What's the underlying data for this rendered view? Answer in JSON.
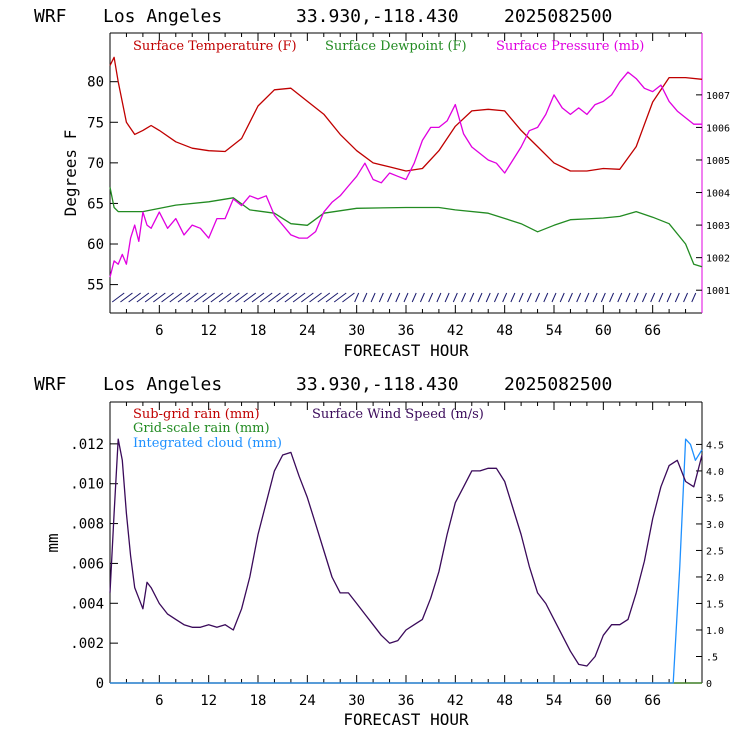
{
  "colors": {
    "temp": "#c00000",
    "dew": "#228b22",
    "pressure": "#e000e0",
    "wind": "#3a0a5a",
    "cloud": "#1e90ff",
    "barbs": "#1a1a6e",
    "frame_right_top": "#e000e0"
  },
  "top": {
    "title": {
      "model": "WRF",
      "location": "Los Angeles",
      "coords": "33.930,-118.430",
      "date": "2025082500"
    },
    "ylabel": "Degrees F",
    "xlabel": "FORECAST HOUR"
  },
  "bottom": {
    "title": {
      "model": "WRF",
      "location": "Los Angeles",
      "coords": "33.930,-118.430",
      "date": "2025082500"
    },
    "ylabel": "mm",
    "xlabel": "FORECAST HOUR"
  },
  "chart_data": [
    {
      "type": "line",
      "x_ticks": [
        "6",
        "12",
        "18",
        "24",
        "30",
        "36",
        "42",
        "48",
        "54",
        "60",
        "66"
      ],
      "xlim": [
        0,
        72
      ],
      "left_axis": {
        "label": "Degrees F",
        "ticks": [
          "55",
          "60",
          "65",
          "70",
          "75",
          "80"
        ],
        "ylim": [
          51.5,
          86
        ]
      },
      "right_axis": {
        "ticks": [
          "1001",
          "1002",
          "1003",
          "1004",
          "1005",
          "1006",
          "1007"
        ],
        "ylim": [
          1000.3,
          1008.9
        ]
      },
      "series": [
        {
          "name": "Surface Temperature (F)",
          "axis": "left",
          "color_key": "temp",
          "x": [
            0,
            0.5,
            1,
            2,
            3,
            4,
            5,
            6,
            8,
            10,
            12,
            14,
            16,
            18,
            20,
            22,
            24,
            26,
            28,
            30,
            32,
            34,
            36,
            38,
            40,
            42,
            44,
            46,
            48,
            50,
            52,
            54,
            56,
            58,
            60,
            62,
            64,
            66,
            68,
            70,
            72
          ],
          "y": [
            82,
            83,
            80,
            75,
            73.5,
            74,
            74.6,
            74,
            72.6,
            71.8,
            71.5,
            71.4,
            73,
            77,
            79,
            79.2,
            77.6,
            76,
            73.5,
            71.5,
            70,
            69.5,
            69,
            69.3,
            71.5,
            74.5,
            76.4,
            76.6,
            76.4,
            74,
            72,
            70,
            69,
            69,
            69.3,
            69.2,
            72,
            77.5,
            80.5,
            80.5,
            80.3
          ]
        },
        {
          "name": "Surface Dewpoint (F)",
          "axis": "left",
          "color_key": "dew",
          "x": [
            0,
            0.5,
            1,
            4,
            8,
            12,
            15,
            17,
            20,
            22,
            24,
            26,
            30,
            36,
            40,
            42,
            46,
            50,
            52,
            54,
            56,
            58,
            60,
            62,
            64,
            66,
            68,
            70,
            71,
            72
          ],
          "y": [
            67,
            64.5,
            64,
            64,
            64.8,
            65.2,
            65.7,
            64.2,
            63.8,
            62.5,
            62.3,
            63.8,
            64.4,
            64.5,
            64.5,
            64.2,
            63.8,
            62.5,
            61.5,
            62.3,
            63,
            63.1,
            63.2,
            63.4,
            64,
            63.3,
            62.5,
            60,
            57.5,
            57.2
          ]
        },
        {
          "name": "Surface Pressure (mb)",
          "axis": "right",
          "color_key": "pressure",
          "x": [
            0,
            0.5,
            1,
            1.5,
            2,
            2.5,
            3,
            3.5,
            4,
            4.5,
            5,
            6,
            7,
            8,
            9,
            10,
            11,
            12,
            13,
            14,
            15,
            16,
            17,
            18,
            19,
            20,
            21,
            22,
            23,
            24,
            25,
            26,
            27,
            28,
            29,
            30,
            31,
            32,
            33,
            34,
            35,
            36,
            37,
            38,
            39,
            40,
            41,
            42,
            43,
            44,
            45,
            46,
            47,
            48,
            49,
            50,
            51,
            52,
            53,
            54,
            55,
            56,
            57,
            58,
            59,
            60,
            61,
            62,
            63,
            64,
            65,
            66,
            67,
            68,
            69,
            70,
            71,
            72
          ],
          "y": [
            1001.4,
            1001.9,
            1001.8,
            1002.1,
            1001.8,
            1002.6,
            1003.0,
            1002.5,
            1003.4,
            1003.0,
            1002.9,
            1003.4,
            1002.9,
            1003.2,
            1002.7,
            1003.0,
            1002.9,
            1002.6,
            1003.2,
            1003.2,
            1003.8,
            1003.6,
            1003.9,
            1003.8,
            1003.9,
            1003.3,
            1003.0,
            1002.7,
            1002.6,
            1002.6,
            1002.8,
            1003.4,
            1003.7,
            1003.9,
            1004.2,
            1004.5,
            1004.9,
            1004.4,
            1004.3,
            1004.6,
            1004.5,
            1004.4,
            1004.9,
            1005.6,
            1006.0,
            1006.0,
            1006.2,
            1006.7,
            1005.8,
            1005.4,
            1005.2,
            1005.0,
            1004.9,
            1004.6,
            1005.0,
            1005.4,
            1005.9,
            1006.0,
            1006.4,
            1007.0,
            1006.6,
            1006.4,
            1006.6,
            1006.4,
            1006.7,
            1006.8,
            1007.0,
            1007.4,
            1007.7,
            1007.5,
            1007.2,
            1007.1,
            1007.3,
            1006.8,
            1006.5,
            1006.3,
            1006.1,
            1006.1
          ]
        }
      ]
    },
    {
      "type": "line",
      "x_ticks": [
        "6",
        "12",
        "18",
        "24",
        "30",
        "36",
        "42",
        "48",
        "54",
        "60",
        "66"
      ],
      "xlim": [
        0,
        72
      ],
      "left_axis": {
        "label": "mm",
        "ticks": [
          "0",
          ".002",
          ".004",
          ".006",
          ".008",
          ".010",
          ".012"
        ],
        "tick_values": [
          0,
          0.002,
          0.004,
          0.006,
          0.008,
          0.01,
          0.012
        ],
        "ylim": [
          0,
          0.0141
        ]
      },
      "right_axis": {
        "ticks": [
          "0",
          ".5",
          "1.0",
          "1.5",
          "2.0",
          "2.5",
          "3.0",
          "3.5",
          "4.0",
          "4.5"
        ],
        "tick_values": [
          0,
          0.5,
          1.0,
          1.5,
          2.0,
          2.5,
          3.0,
          3.5,
          4.0,
          4.5
        ],
        "ylim": [
          0,
          5.3
        ]
      },
      "series": [
        {
          "name": "Sub-grid rain (mm)",
          "axis": "left",
          "color_key": "temp",
          "x": [
            0,
            72
          ],
          "y": [
            0,
            0
          ]
        },
        {
          "name": "Grid-scale rain (mm)",
          "axis": "left",
          "color_key": "dew",
          "x": [
            0,
            72
          ],
          "y": [
            0,
            0
          ]
        },
        {
          "name": "Integrated cloud (mm)",
          "axis": "right",
          "color_key": "cloud",
          "x": [
            0,
            68.5,
            69.3,
            70,
            70.6,
            71.2,
            72
          ],
          "y": [
            0,
            0,
            2.2,
            4.6,
            4.5,
            4.2,
            4.4
          ]
        },
        {
          "name": "Surface Wind Speed (m/s)",
          "axis": "right",
          "color_key": "wind",
          "x": [
            0,
            0.5,
            1,
            1.5,
            2,
            2.5,
            3,
            3.5,
            4,
            4.5,
            5,
            6,
            7,
            8,
            9,
            10,
            11,
            12,
            13,
            14,
            15,
            16,
            17,
            18,
            19,
            20,
            21,
            22,
            23,
            24,
            25,
            26,
            27,
            28,
            29,
            30,
            31,
            32,
            33,
            34,
            35,
            36,
            37,
            38,
            39,
            40,
            41,
            42,
            43,
            44,
            45,
            46,
            47,
            48,
            49,
            50,
            51,
            52,
            53,
            54,
            55,
            56,
            57,
            58,
            59,
            60,
            61,
            62,
            63,
            64,
            65,
            66,
            67,
            68,
            69,
            70,
            71,
            72
          ],
          "y": [
            1.7,
            3.2,
            4.6,
            4.2,
            3.2,
            2.4,
            1.8,
            1.6,
            1.4,
            1.9,
            1.8,
            1.5,
            1.3,
            1.2,
            1.1,
            1.05,
            1.05,
            1.1,
            1.05,
            1.1,
            1.0,
            1.4,
            2.0,
            2.8,
            3.4,
            4.0,
            4.3,
            4.35,
            3.9,
            3.5,
            3.0,
            2.5,
            2.0,
            1.7,
            1.7,
            1.5,
            1.3,
            1.1,
            0.9,
            0.75,
            0.8,
            1.0,
            1.1,
            1.2,
            1.6,
            2.1,
            2.8,
            3.4,
            3.7,
            4.0,
            4.0,
            4.05,
            4.05,
            3.8,
            3.3,
            2.8,
            2.2,
            1.7,
            1.5,
            1.2,
            0.9,
            0.6,
            0.35,
            0.32,
            0.5,
            0.9,
            1.1,
            1.1,
            1.2,
            1.7,
            2.3,
            3.1,
            3.7,
            4.1,
            4.2,
            3.8,
            3.7,
            4.3
          ]
        }
      ]
    }
  ]
}
